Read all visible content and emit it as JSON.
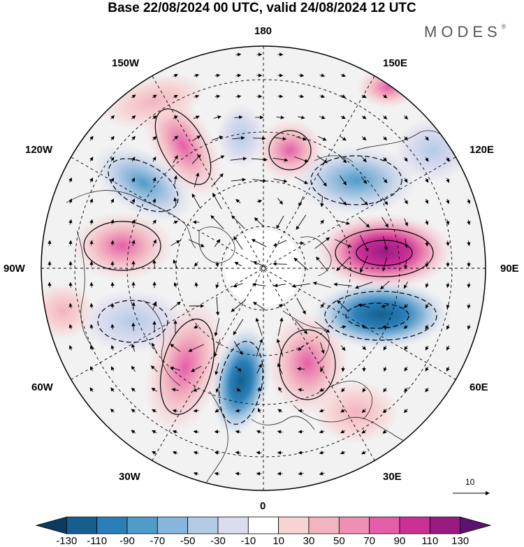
{
  "title": "Base 22/08/2024 00 UTC, valid 24/08/2024 12 UTC",
  "brand": "MODES",
  "brand_mark": "®",
  "longitude_labels": {
    "lon_180": "180",
    "lon_150w": "150W",
    "lon_150e": "150E",
    "lon_120w": "120W",
    "lon_120e": "120E",
    "lon_90w": "90W",
    "lon_90e": "90E",
    "lon_60w": "60W",
    "lon_60e": "60E",
    "lon_30w": "30W",
    "lon_30e": "30E",
    "lon_0": "0"
  },
  "reference_vector_label": "10",
  "colorbar": {
    "labels": [
      "-130",
      "-110",
      "-90",
      "-70",
      "-50",
      "-30",
      "-10",
      "10",
      "30",
      "50",
      "70",
      "90",
      "110",
      "130"
    ],
    "colors": [
      "#0c3b5e",
      "#155f8e",
      "#2b7fb8",
      "#4f9cc9",
      "#86b6d9",
      "#b4cbe6",
      "#dcdcef",
      "#ffffff",
      "#f7d3d3",
      "#f2b4c0",
      "#ee8fb4",
      "#e55fa8",
      "#cc2f96",
      "#9a1a82",
      "#5e1172"
    ]
  },
  "chart_data": {
    "type": "heatmap",
    "projection": "north-polar-stereographic",
    "field_units": "",
    "anomalies": [
      {
        "lon": -150,
        "lat": 52,
        "value": 50,
        "sign": "positive"
      },
      {
        "lon": -125,
        "lat": 58,
        "value": -60,
        "sign": "negative"
      },
      {
        "lon": -100,
        "lat": 55,
        "value": 50,
        "sign": "positive"
      },
      {
        "lon": -75,
        "lat": 52,
        "value": -30,
        "sign": "negative"
      },
      {
        "lon": -48,
        "lat": 50,
        "value": 60,
        "sign": "positive"
      },
      {
        "lon": -15,
        "lat": 58,
        "value": -70,
        "sign": "negative"
      },
      {
        "lon": 25,
        "lat": 58,
        "value": 70,
        "sign": "positive"
      },
      {
        "lon": 60,
        "lat": 60,
        "value": -90,
        "sign": "negative"
      },
      {
        "lon": 95,
        "lat": 58,
        "value": 100,
        "sign": "positive"
      },
      {
        "lon": 130,
        "lat": 62,
        "value": -60,
        "sign": "negative"
      },
      {
        "lon": 165,
        "lat": 68,
        "value": 40,
        "sign": "positive"
      },
      {
        "lon": 150,
        "lat": 50,
        "value": 30,
        "sign": "positive"
      }
    ]
  }
}
